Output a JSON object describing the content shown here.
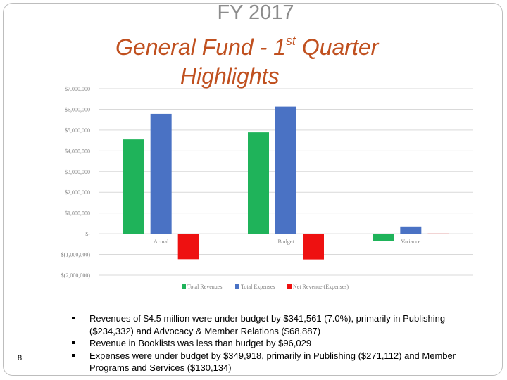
{
  "slide": {
    "title_line1": "FY 2017",
    "title_line2_main": "General Fund - 1",
    "title_line2_sup": "st",
    "title_line2_tail": " Quarter",
    "title_line3": "Highlights",
    "page_number": "8"
  },
  "bullets": [
    "Revenues of $4.5 million were under budget by $341,561 (7.0%), primarily in Publishing ($234,332) and Advocacy & Member Relations ($68,887)",
    "Revenue in Booklists was less than budget by $96,029",
    "Expenses were under budget by $349,918, primarily in Publishing ($271,112) and Member Programs and Services ($130,134)"
  ],
  "colors": {
    "title_gray": "#8c8c8c",
    "title_orange": "#c0501f",
    "total_revenues": "#1fb35a",
    "total_expenses": "#4a72c4",
    "net_revenue": "#ee1111"
  },
  "chart_data": {
    "type": "bar",
    "categories": [
      "Actual",
      "Budget",
      "Variance"
    ],
    "series": [
      {
        "name": "Total Revenues",
        "values": [
          4550000,
          4890000,
          -341561
        ]
      },
      {
        "name": "Total Expenses",
        "values": [
          5780000,
          6130000,
          349918
        ]
      },
      {
        "name": "Net Revenue (Expenses)",
        "values": [
          -1230000,
          -1240000,
          8357
        ]
      }
    ],
    "ylim": [
      -2000000,
      7000000
    ],
    "yticks": [
      "$(2,000,000)",
      "$(1,000,000)",
      "$-",
      "$1,000,000",
      "$2,000,000",
      "$3,000,000",
      "$4,000,000",
      "$5,000,000",
      "$6,000,000",
      "$7,000,000"
    ],
    "ytick_values": [
      -2000000,
      -1000000,
      0,
      1000000,
      2000000,
      3000000,
      4000000,
      5000000,
      6000000,
      7000000
    ],
    "grid": true,
    "legend_position": "bottom"
  }
}
